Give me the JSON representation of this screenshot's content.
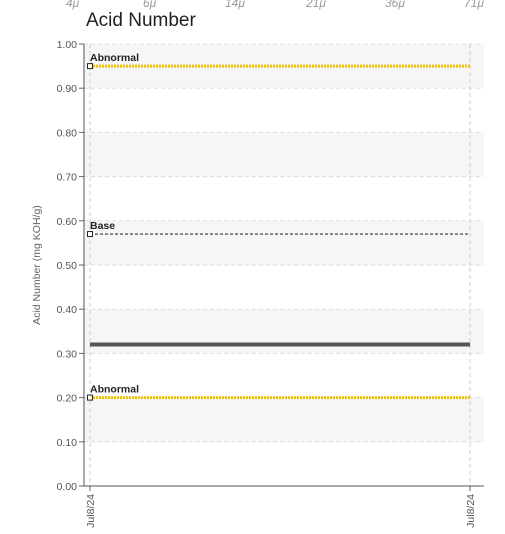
{
  "top_ticks": [
    "4μ",
    "6μ",
    "14μ",
    "21μ",
    "36μ",
    "71μ"
  ],
  "chart_data": {
    "type": "line",
    "title": "Acid Number",
    "ylabel": "Acid Number (mg KOH/g)",
    "xlabel": "",
    "ylim": [
      0,
      1.0
    ],
    "y_ticks": [
      "0.00",
      "0.10",
      "0.20",
      "0.30",
      "0.40",
      "0.50",
      "0.60",
      "0.70",
      "0.80",
      "0.90",
      "1.00"
    ],
    "x_ticks": [
      "Jul8/24",
      "Jul8/24"
    ],
    "grid": true,
    "series": [
      {
        "x": [
          "Jul8/24",
          "Jul8/24"
        ],
        "values": [
          0.32,
          0.32
        ],
        "color": "#555555"
      }
    ],
    "reference_lines": [
      {
        "label": "Abnormal",
        "value": 0.95,
        "color": "#f2c200",
        "style": "dotted"
      },
      {
        "label": "Base",
        "value": 0.57,
        "color": "#333333",
        "style": "dashed"
      },
      {
        "label": "Abnormal",
        "value": 0.2,
        "color": "#f2c200",
        "style": "dotted"
      }
    ]
  }
}
